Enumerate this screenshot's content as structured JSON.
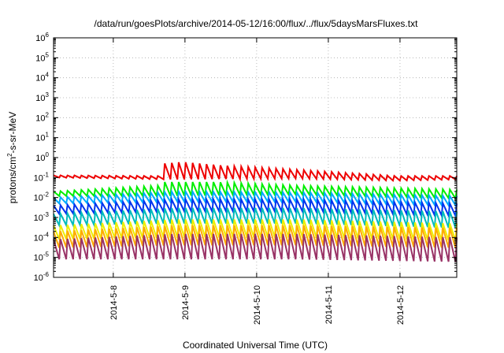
{
  "chart_data": {
    "type": "line",
    "title": "/data/run/goesPlots/archive/2014-05-12/16:00/flux/../flux/5daysMarsFluxes.txt",
    "xlabel": "Coordinated Universal Time (UTC)",
    "ylabel": {
      "prefix": "protons/cm",
      "sup": "2",
      "suffix": "-s-sr-MeV"
    },
    "ylim_log10": [
      -6,
      6
    ],
    "y_scale": "log",
    "xlim": [
      "2014-05-07 04:00",
      "2014-05-12 19:00"
    ],
    "xticks": [
      {
        "date": "2014-05-08 00:00",
        "label": "2014-5-8"
      },
      {
        "date": "2014-05-09 00:00",
        "label": "2014-5-9"
      },
      {
        "date": "2014-05-10 00:00",
        "label": "2014-5-10"
      },
      {
        "date": "2014-05-11 00:00",
        "label": "2014-5-11"
      },
      {
        "date": "2014-05-12 00:00",
        "label": "2014-5-12"
      }
    ],
    "yticks": [
      {
        "exp": 6,
        "base": "10",
        "sup": "6"
      },
      {
        "exp": 5,
        "base": "10",
        "sup": "5"
      },
      {
        "exp": 4,
        "base": "10",
        "sup": "4"
      },
      {
        "exp": 3,
        "base": "10",
        "sup": "3"
      },
      {
        "exp": 2,
        "base": "10",
        "sup": "2"
      },
      {
        "exp": 1,
        "base": "10",
        "sup": "1"
      },
      {
        "exp": 0,
        "base": "10",
        "sup": "0"
      },
      {
        "exp": -1,
        "base": "10",
        "sup": "-1"
      },
      {
        "exp": -2,
        "base": "10",
        "sup": "-2"
      },
      {
        "exp": -3,
        "base": "10",
        "sup": "-3"
      },
      {
        "exp": -4,
        "base": "10",
        "sup": "-4"
      },
      {
        "exp": -5,
        "base": "10",
        "sup": "-5"
      },
      {
        "exp": -6,
        "base": "10",
        "sup": "-6"
      }
    ],
    "grid": true,
    "sawtooth_cycles": 58,
    "series": [
      {
        "color": "#ee0000",
        "low": [
          [
            0,
            0.1
          ],
          [
            0.3,
            0.08
          ],
          [
            0.6,
            0.09
          ],
          [
            0.85,
            0.07
          ],
          [
            1,
            0.08
          ]
        ],
        "high": [
          [
            0,
            0.13
          ],
          [
            0.26,
            0.12
          ],
          [
            0.27,
            0.5
          ],
          [
            0.32,
            0.6
          ],
          [
            0.42,
            0.4
          ],
          [
            0.6,
            0.25
          ],
          [
            0.85,
            0.12
          ],
          [
            1,
            0.12
          ]
        ]
      },
      {
        "color": "#00ee00",
        "low": [
          [
            0,
            0.012
          ],
          [
            0.3,
            0.012
          ],
          [
            0.6,
            0.014
          ],
          [
            1,
            0.009
          ]
        ],
        "high": [
          [
            0,
            0.02
          ],
          [
            0.26,
            0.04
          ],
          [
            0.27,
            0.06
          ],
          [
            0.4,
            0.06
          ],
          [
            0.6,
            0.04
          ],
          [
            1,
            0.025
          ]
        ]
      },
      {
        "color": "#00aaff",
        "low": [
          [
            0,
            0.005
          ],
          [
            0.3,
            0.006
          ],
          [
            0.6,
            0.006
          ],
          [
            1,
            0.004
          ]
        ],
        "high": [
          [
            0,
            0.01
          ],
          [
            0.3,
            0.02
          ],
          [
            0.6,
            0.018
          ],
          [
            1,
            0.012
          ]
        ]
      },
      {
        "color": "#0033ee",
        "low": [
          [
            0,
            0.0015
          ],
          [
            0.3,
            0.002
          ],
          [
            0.6,
            0.002
          ],
          [
            1,
            0.0012
          ]
        ],
        "high": [
          [
            0,
            0.004
          ],
          [
            0.3,
            0.008
          ],
          [
            0.6,
            0.008
          ],
          [
            1,
            0.005
          ]
        ]
      },
      {
        "color": "#00bbbb",
        "low": [
          [
            0,
            0.0004
          ],
          [
            0.3,
            0.0005
          ],
          [
            0.6,
            0.0005
          ],
          [
            1,
            0.0003
          ]
        ],
        "high": [
          [
            0,
            0.0015
          ],
          [
            0.3,
            0.003
          ],
          [
            0.6,
            0.003
          ],
          [
            1,
            0.002
          ]
        ]
      },
      {
        "color": "#eeee00",
        "low": [
          [
            0,
            8e-05
          ],
          [
            0.3,
            0.0001
          ],
          [
            0.6,
            0.0001
          ],
          [
            1,
            7e-05
          ]
        ],
        "high": [
          [
            0,
            0.0004
          ],
          [
            0.3,
            0.0008
          ],
          [
            0.6,
            0.0008
          ],
          [
            1,
            0.0005
          ]
        ]
      },
      {
        "color": "#ffaa00",
        "low": [
          [
            0,
            3e-05
          ],
          [
            0.3,
            4e-05
          ],
          [
            0.6,
            4e-05
          ],
          [
            1,
            3e-05
          ]
        ],
        "high": [
          [
            0,
            0.0002
          ],
          [
            0.3,
            0.0004
          ],
          [
            0.6,
            0.0004
          ],
          [
            1,
            0.0003
          ]
        ]
      },
      {
        "color": "#993366",
        "low": [
          [
            0,
            8e-06
          ],
          [
            0.3,
            8e-06
          ],
          [
            0.6,
            8e-06
          ],
          [
            1,
            6e-06
          ]
        ],
        "high": [
          [
            0,
            8e-05
          ],
          [
            0.3,
            0.00015
          ],
          [
            0.6,
            0.00015
          ],
          [
            1,
            0.0001
          ]
        ]
      }
    ]
  }
}
